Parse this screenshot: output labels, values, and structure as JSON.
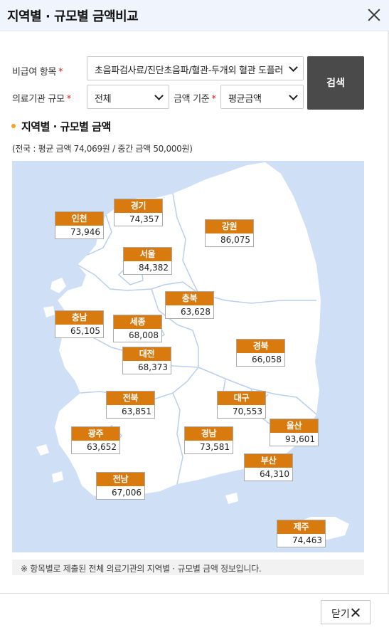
{
  "header": {
    "title": "지역별 · 규모별 금액비교"
  },
  "form": {
    "item_label": "비급여 항목",
    "item_value": "초음파검사료/진단초음파/혈관-두개외 혈관 도플러",
    "scale_label": "의료기관 규모",
    "scale_value": "전체",
    "basis_label": "금액 기준",
    "basis_value": "평균금액",
    "required_mark": "*",
    "search_label": "검색"
  },
  "section": {
    "title": "지역별 · 규모별 금액",
    "summary": "(전국 : 평균 금액 74,069원 / 중간 금액 50,000원)"
  },
  "map": {
    "land_color": "#ffffff",
    "sea_color": "#cfe0f6",
    "label_color": "#d97a0f",
    "regions": [
      {
        "name": "인천",
        "value": "73,946"
      },
      {
        "name": "경기",
        "value": "74,357"
      },
      {
        "name": "강원",
        "value": "86,075"
      },
      {
        "name": "서울",
        "value": "84,382"
      },
      {
        "name": "충북",
        "value": "63,628"
      },
      {
        "name": "충남",
        "value": "65,105"
      },
      {
        "name": "세종",
        "value": "68,008"
      },
      {
        "name": "경북",
        "value": "66,058"
      },
      {
        "name": "대전",
        "value": "68,373"
      },
      {
        "name": "전북",
        "value": "63,851"
      },
      {
        "name": "대구",
        "value": "70,553"
      },
      {
        "name": "광주",
        "value": "63,652"
      },
      {
        "name": "경남",
        "value": "73,581"
      },
      {
        "name": "울산",
        "value": "93,601"
      },
      {
        "name": "부산",
        "value": "64,310"
      },
      {
        "name": "전남",
        "value": "67,006"
      },
      {
        "name": "제주",
        "value": "74,463"
      }
    ]
  },
  "note": "※ 항목별로 제출된 전체 의료기관의 지역별 · 규모별 금액 정보입니다.",
  "footer": {
    "close_label": "닫기"
  }
}
